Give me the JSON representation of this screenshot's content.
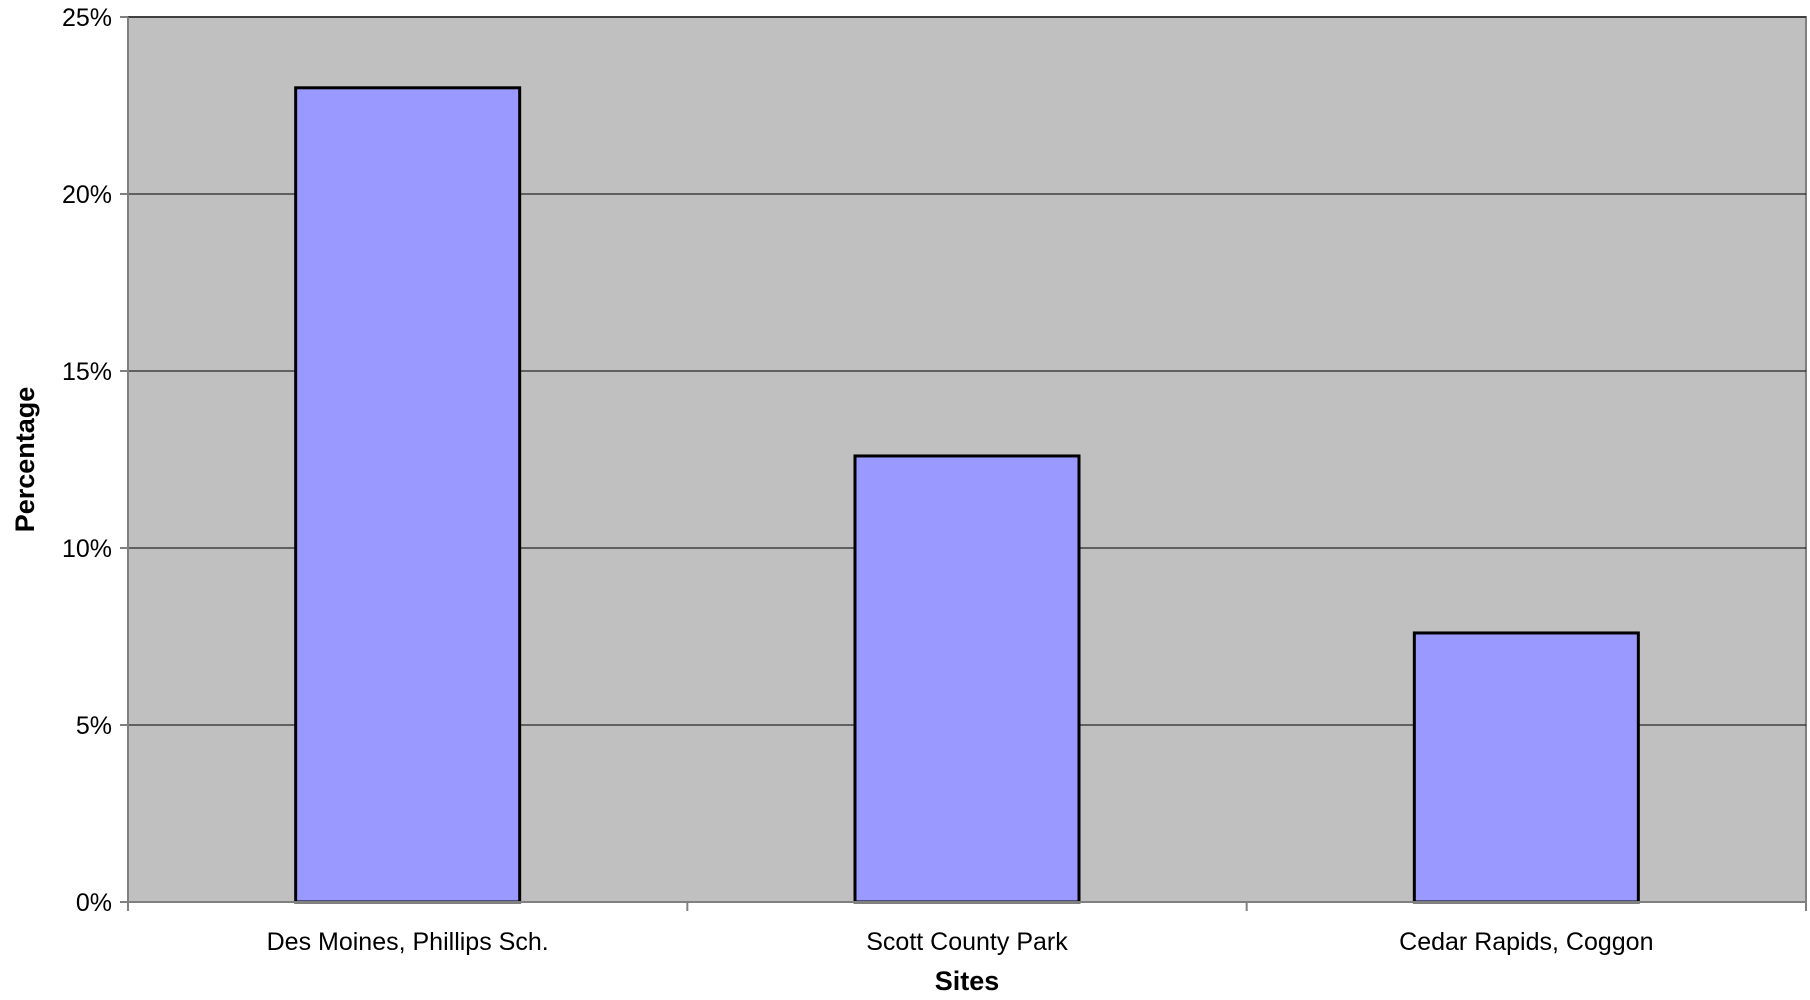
{
  "chart_data": {
    "type": "bar",
    "title": "",
    "xlabel": "Sites",
    "ylabel": "Percentage",
    "categories": [
      "Des Moines, Phillips Sch.",
      "Scott County Park",
      "Cedar Rapids, Coggon"
    ],
    "values": [
      23.0,
      12.6,
      7.6
    ],
    "value_unit": "%",
    "ylim": [
      0,
      25
    ],
    "yticks": [
      0,
      5,
      10,
      15,
      20,
      25
    ],
    "ytick_labels": [
      "0%",
      "5%",
      "10%",
      "15%",
      "20%",
      "25%"
    ],
    "grid": true,
    "legend": "none",
    "colors": {
      "plot_background": "#c0c0c0",
      "bar_fill": "#9999ff",
      "bar_stroke": "#000000",
      "gridline": "#000000",
      "axis": "#808080"
    }
  }
}
